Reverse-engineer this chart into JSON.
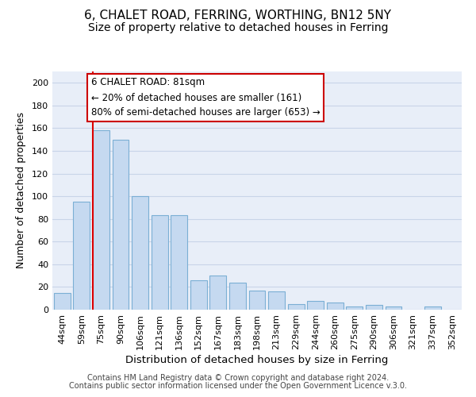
{
  "title": "6, CHALET ROAD, FERRING, WORTHING, BN12 5NY",
  "subtitle": "Size of property relative to detached houses in Ferring",
  "xlabel": "Distribution of detached houses by size in Ferring",
  "ylabel": "Number of detached properties",
  "categories": [
    "44sqm",
    "59sqm",
    "75sqm",
    "90sqm",
    "106sqm",
    "121sqm",
    "136sqm",
    "152sqm",
    "167sqm",
    "183sqm",
    "198sqm",
    "213sqm",
    "229sqm",
    "244sqm",
    "260sqm",
    "275sqm",
    "290sqm",
    "306sqm",
    "321sqm",
    "337sqm",
    "352sqm"
  ],
  "values": [
    15,
    95,
    158,
    150,
    100,
    83,
    83,
    26,
    30,
    24,
    17,
    16,
    5,
    8,
    6,
    3,
    4,
    3,
    0,
    3,
    0
  ],
  "bar_color": "#c5d9f0",
  "bar_edge_color": "#7bafd4",
  "vline_index": 2,
  "vline_color": "#dd0000",
  "ylim": [
    0,
    210
  ],
  "yticks": [
    0,
    20,
    40,
    60,
    80,
    100,
    120,
    140,
    160,
    180,
    200
  ],
  "annotation_title": "6 CHALET ROAD: 81sqm",
  "annotation_line1": "← 20% of detached houses are smaller (161)",
  "annotation_line2": "80% of semi-detached houses are larger (653) →",
  "annotation_box_color": "#ffffff",
  "annotation_box_edge": "#cc0000",
  "footnote1": "Contains HM Land Registry data © Crown copyright and database right 2024.",
  "footnote2": "Contains public sector information licensed under the Open Government Licence v.3.0.",
  "title_fontsize": 11,
  "subtitle_fontsize": 10,
  "xlabel_fontsize": 9.5,
  "ylabel_fontsize": 9,
  "tick_fontsize": 8,
  "annotation_fontsize": 8.5,
  "footnote_fontsize": 7,
  "plot_bg_color": "#e8eef8",
  "background_color": "#ffffff",
  "grid_color": "#c8d4e8"
}
